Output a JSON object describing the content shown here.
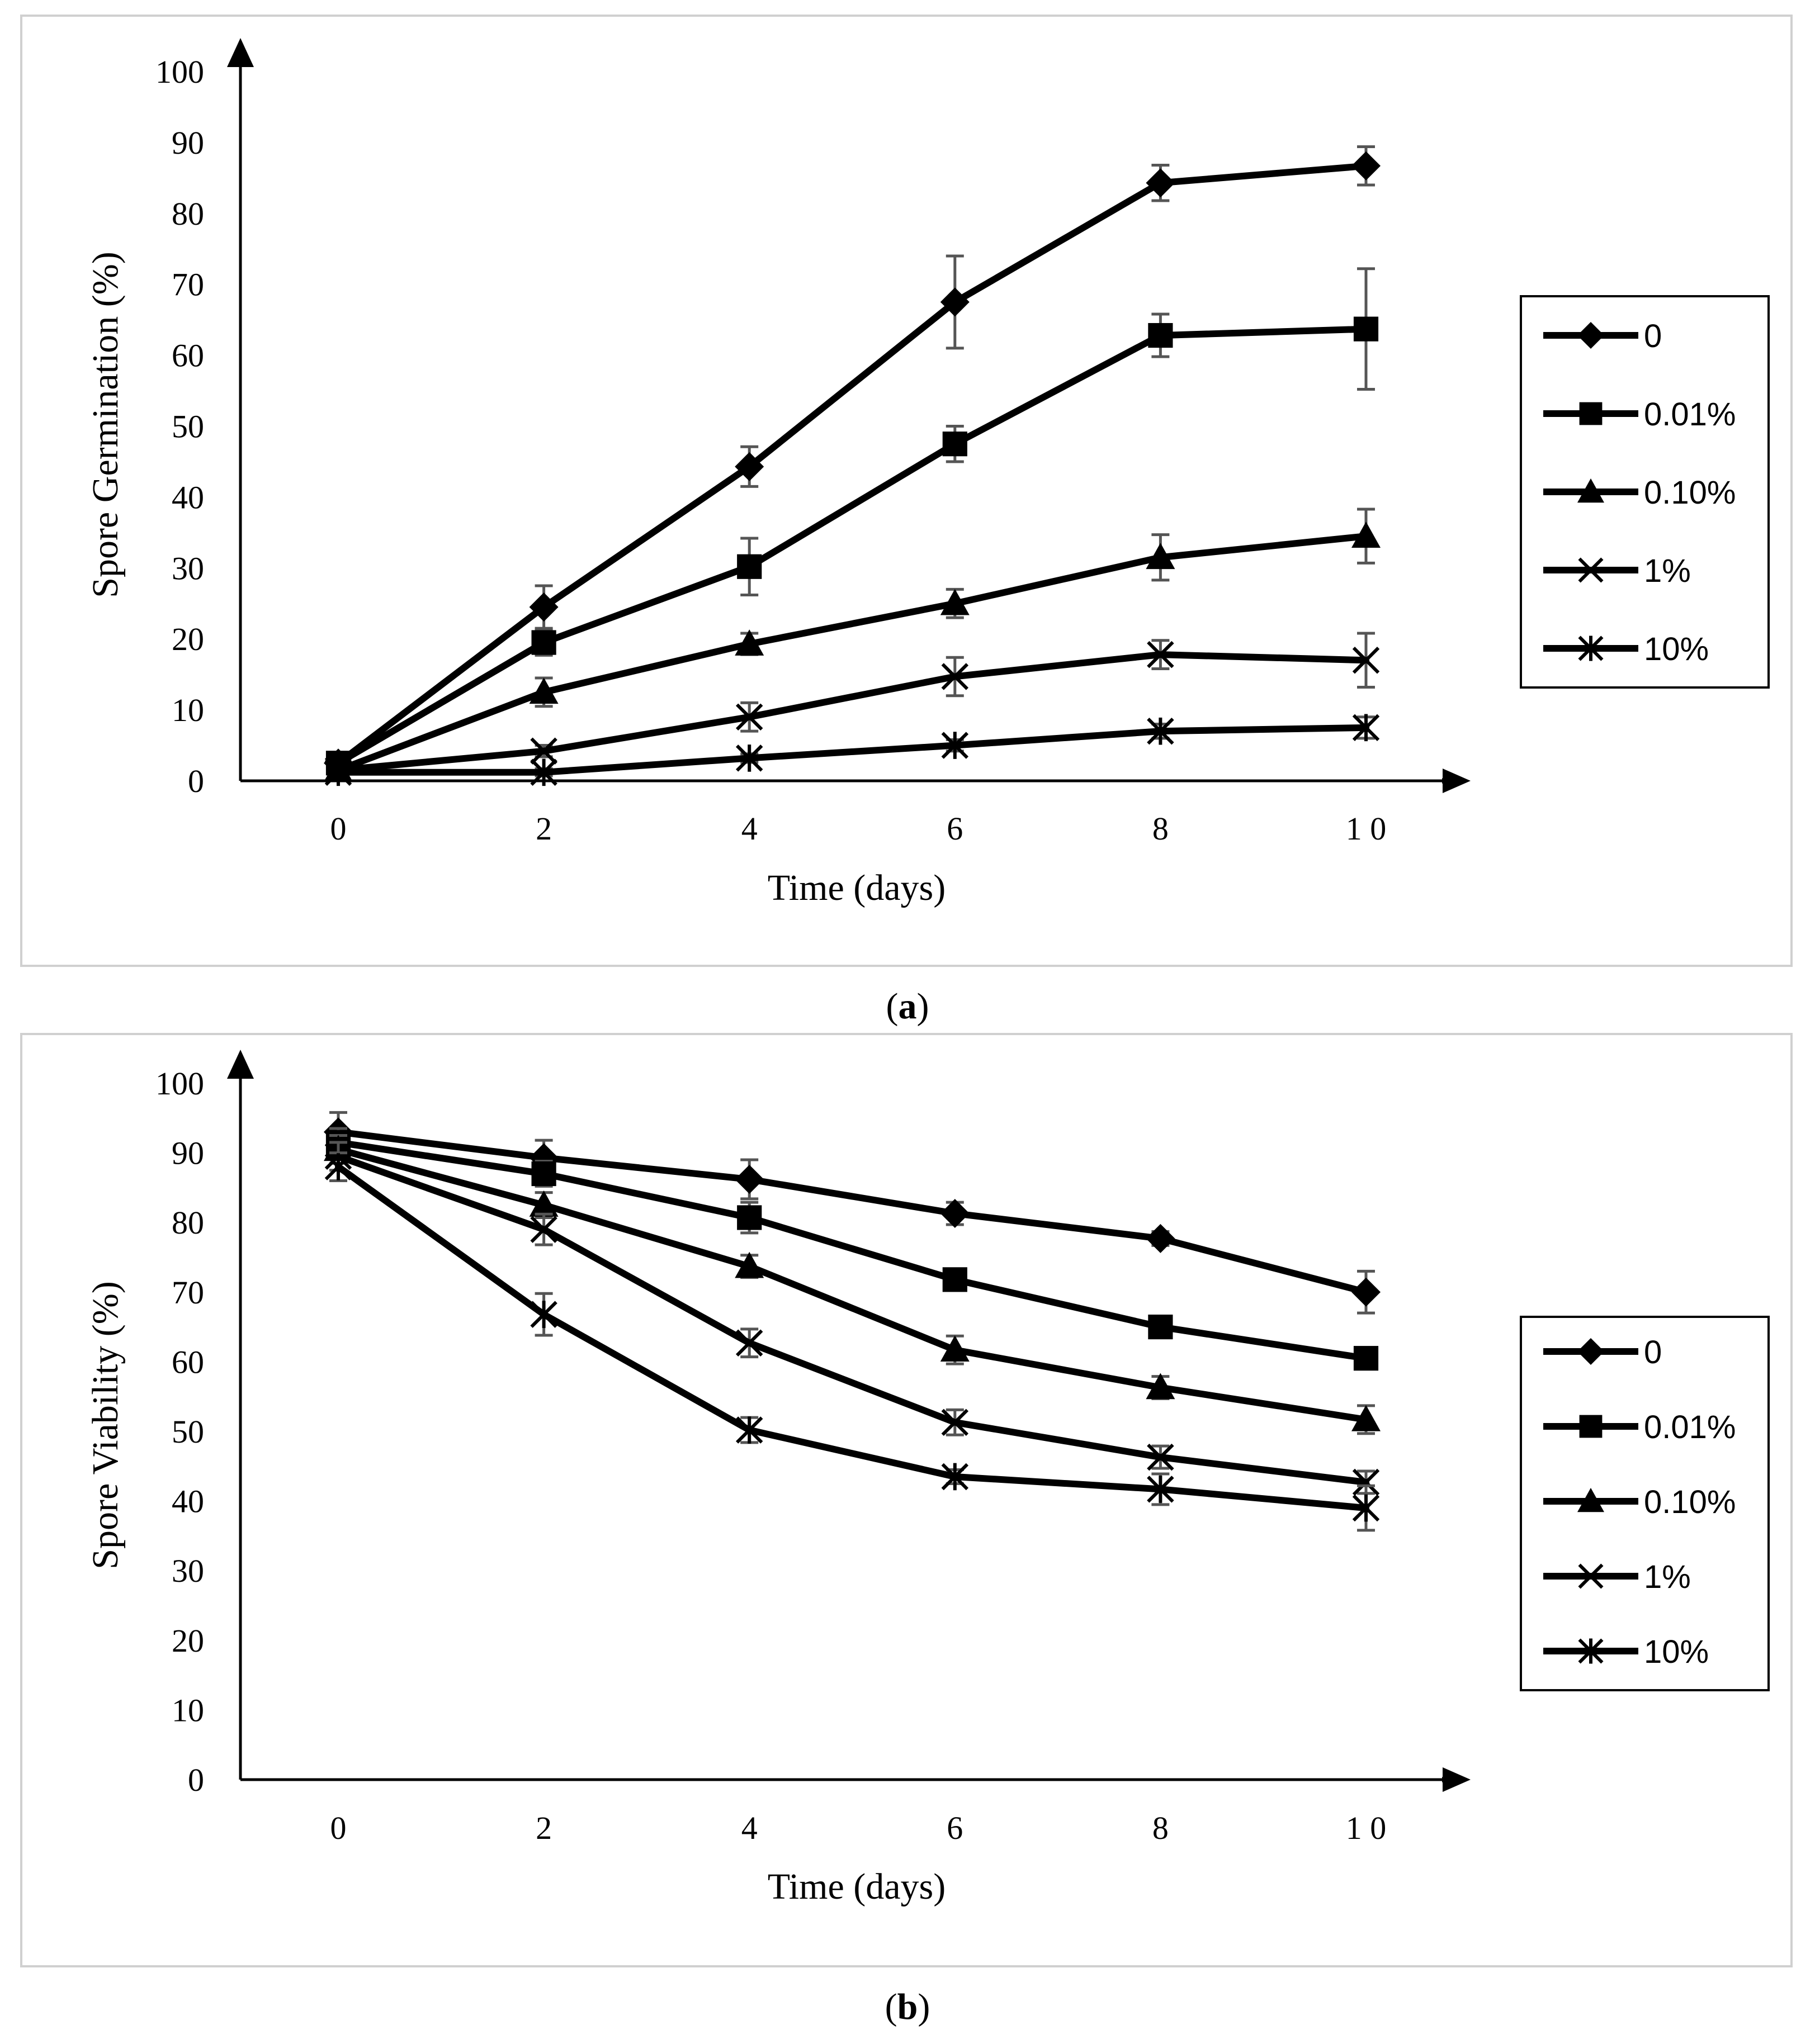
{
  "chart_data": [
    {
      "type": "line",
      "panel": "a",
      "caption_open": "(",
      "caption_letter": "a",
      "caption_close": ")",
      "xlabel": "Time (days)",
      "ylabel": "Spore Germination (%)",
      "x": [
        0,
        2,
        4,
        6,
        8,
        10
      ],
      "x_tick_labels": [
        "0",
        "2",
        "4",
        "6",
        "8",
        "1 0"
      ],
      "ylim": [
        0,
        100
      ],
      "y_ticks": [
        "0",
        "10",
        "20",
        "30",
        "40",
        "50",
        "60",
        "70",
        "80",
        "90",
        "100"
      ],
      "legend_position": "right",
      "series": [
        {
          "name": "0",
          "marker": "diamond",
          "values": [
            2.5,
            24.5,
            44.3,
            67.5,
            84.3,
            86.7
          ],
          "errors": [
            0,
            3.0,
            2.8,
            6.5,
            2.5,
            2.7
          ]
        },
        {
          "name": "0.01%",
          "marker": "square",
          "values": [
            2.5,
            19.5,
            30.2,
            47.5,
            62.8,
            63.7
          ],
          "errors": [
            0,
            1.8,
            4.0,
            2.5,
            3.0,
            8.5
          ]
        },
        {
          "name": "0.10%",
          "marker": "triangle",
          "values": [
            1.5,
            12.5,
            19.3,
            25.0,
            31.5,
            34.5
          ],
          "errors": [
            0,
            2.0,
            1.5,
            2.0,
            3.2,
            3.8
          ]
        },
        {
          "name": "1%",
          "marker": "x",
          "values": [
            1.5,
            4.2,
            9.0,
            14.7,
            17.8,
            17.0
          ],
          "errors": [
            0,
            0.8,
            2.0,
            2.7,
            2.0,
            3.8
          ]
        },
        {
          "name": "10%",
          "marker": "asterisk",
          "values": [
            1.2,
            1.2,
            3.2,
            5.0,
            7.0,
            7.5
          ],
          "errors": [
            0,
            0.5,
            0.6,
            0.8,
            1.0,
            1.5
          ]
        }
      ]
    },
    {
      "type": "line",
      "panel": "b",
      "caption_open": "(",
      "caption_letter": "b",
      "caption_close": ")",
      "xlabel": "Time (days)",
      "ylabel": "Spore Viability (%)",
      "x": [
        0,
        2,
        4,
        6,
        8,
        10
      ],
      "x_tick_labels": [
        "0",
        "2",
        "4",
        "6",
        "8",
        "1 0"
      ],
      "ylim": [
        0,
        100
      ],
      "y_ticks": [
        "0",
        "10",
        "20",
        "30",
        "40",
        "50",
        "60",
        "70",
        "80",
        "90",
        "100"
      ],
      "legend_position": "right",
      "series": [
        {
          "name": "0",
          "marker": "diamond",
          "values": [
            93.0,
            89.3,
            86.2,
            81.3,
            77.7,
            70.0
          ],
          "errors": [
            2.8,
            2.5,
            2.8,
            1.6,
            1.0,
            3.0
          ]
        },
        {
          "name": "0.01%",
          "marker": "square",
          "values": [
            91.5,
            87.0,
            80.7,
            71.8,
            65.0,
            60.5
          ],
          "errors": [
            2.0,
            1.8,
            2.2,
            1.0,
            1.0,
            1.2
          ]
        },
        {
          "name": "0.10%",
          "marker": "triangle",
          "values": [
            90.5,
            82.5,
            73.7,
            61.7,
            56.3,
            51.7
          ],
          "errors": [
            2.0,
            1.8,
            1.6,
            2.0,
            1.6,
            2.0
          ]
        },
        {
          "name": "1%",
          "marker": "x",
          "values": [
            89.5,
            79.0,
            62.7,
            51.3,
            46.3,
            42.7
          ],
          "errors": [
            2.0,
            2.2,
            2.0,
            1.8,
            1.6,
            1.6
          ]
        },
        {
          "name": "10%",
          "marker": "asterisk",
          "values": [
            88.0,
            66.8,
            50.2,
            43.5,
            41.7,
            39.0
          ],
          "errors": [
            2.0,
            3.0,
            1.8,
            1.0,
            2.2,
            3.2
          ]
        }
      ]
    }
  ]
}
